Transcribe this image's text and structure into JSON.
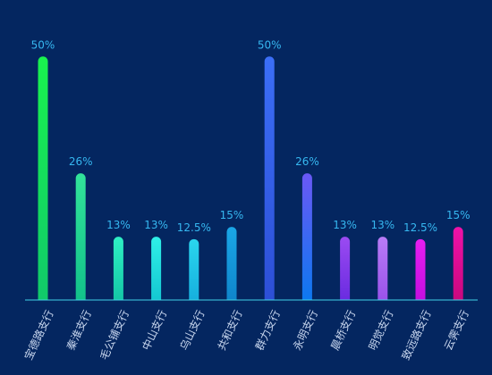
{
  "chart_data": {
    "type": "bar",
    "categories": [
      "宝德路支行",
      "秦淮支行",
      "毛公铺支行",
      "中山支行",
      "乌山支行",
      "共和支行",
      "群力支行",
      "永明支行",
      "晨桥支行",
      "明觉支行",
      "致远路支行",
      "云霁支行"
    ],
    "values": [
      50,
      26,
      13,
      13,
      12.5,
      15,
      50,
      26,
      13,
      13,
      12.5,
      15
    ],
    "labels": [
      "50%",
      "26%",
      "13%",
      "13%",
      "12.5%",
      "15%",
      "50%",
      "26%",
      "13%",
      "13%",
      "12.5%",
      "15%"
    ],
    "ylim": [
      0,
      55
    ],
    "grid": false,
    "colors": {
      "background": "#042660",
      "axis": "#3fd3e6",
      "label": "#36b7f0",
      "category_text": "#c8d6ee",
      "bar_gradients": [
        [
          "#19f24e",
          "#11c96a"
        ],
        [
          "#32e39a",
          "#12c28a"
        ],
        [
          "#2ff0c4",
          "#14c7a6"
        ],
        [
          "#2ff0e8",
          "#14c7d2"
        ],
        [
          "#2ad6ee",
          "#16b0de"
        ],
        [
          "#1aa6e6",
          "#0f86cc"
        ],
        [
          "#3b6ef7",
          "#2d4fd6"
        ],
        [
          "#6a58f5",
          "#0d78f0"
        ],
        [
          "#9b4bf2",
          "#6a2be0"
        ],
        [
          "#b87cf6",
          "#9a52ea"
        ],
        [
          "#e61ef0",
          "#c40ee0"
        ],
        [
          "#f012a8",
          "#c8087e"
        ]
      ]
    }
  }
}
